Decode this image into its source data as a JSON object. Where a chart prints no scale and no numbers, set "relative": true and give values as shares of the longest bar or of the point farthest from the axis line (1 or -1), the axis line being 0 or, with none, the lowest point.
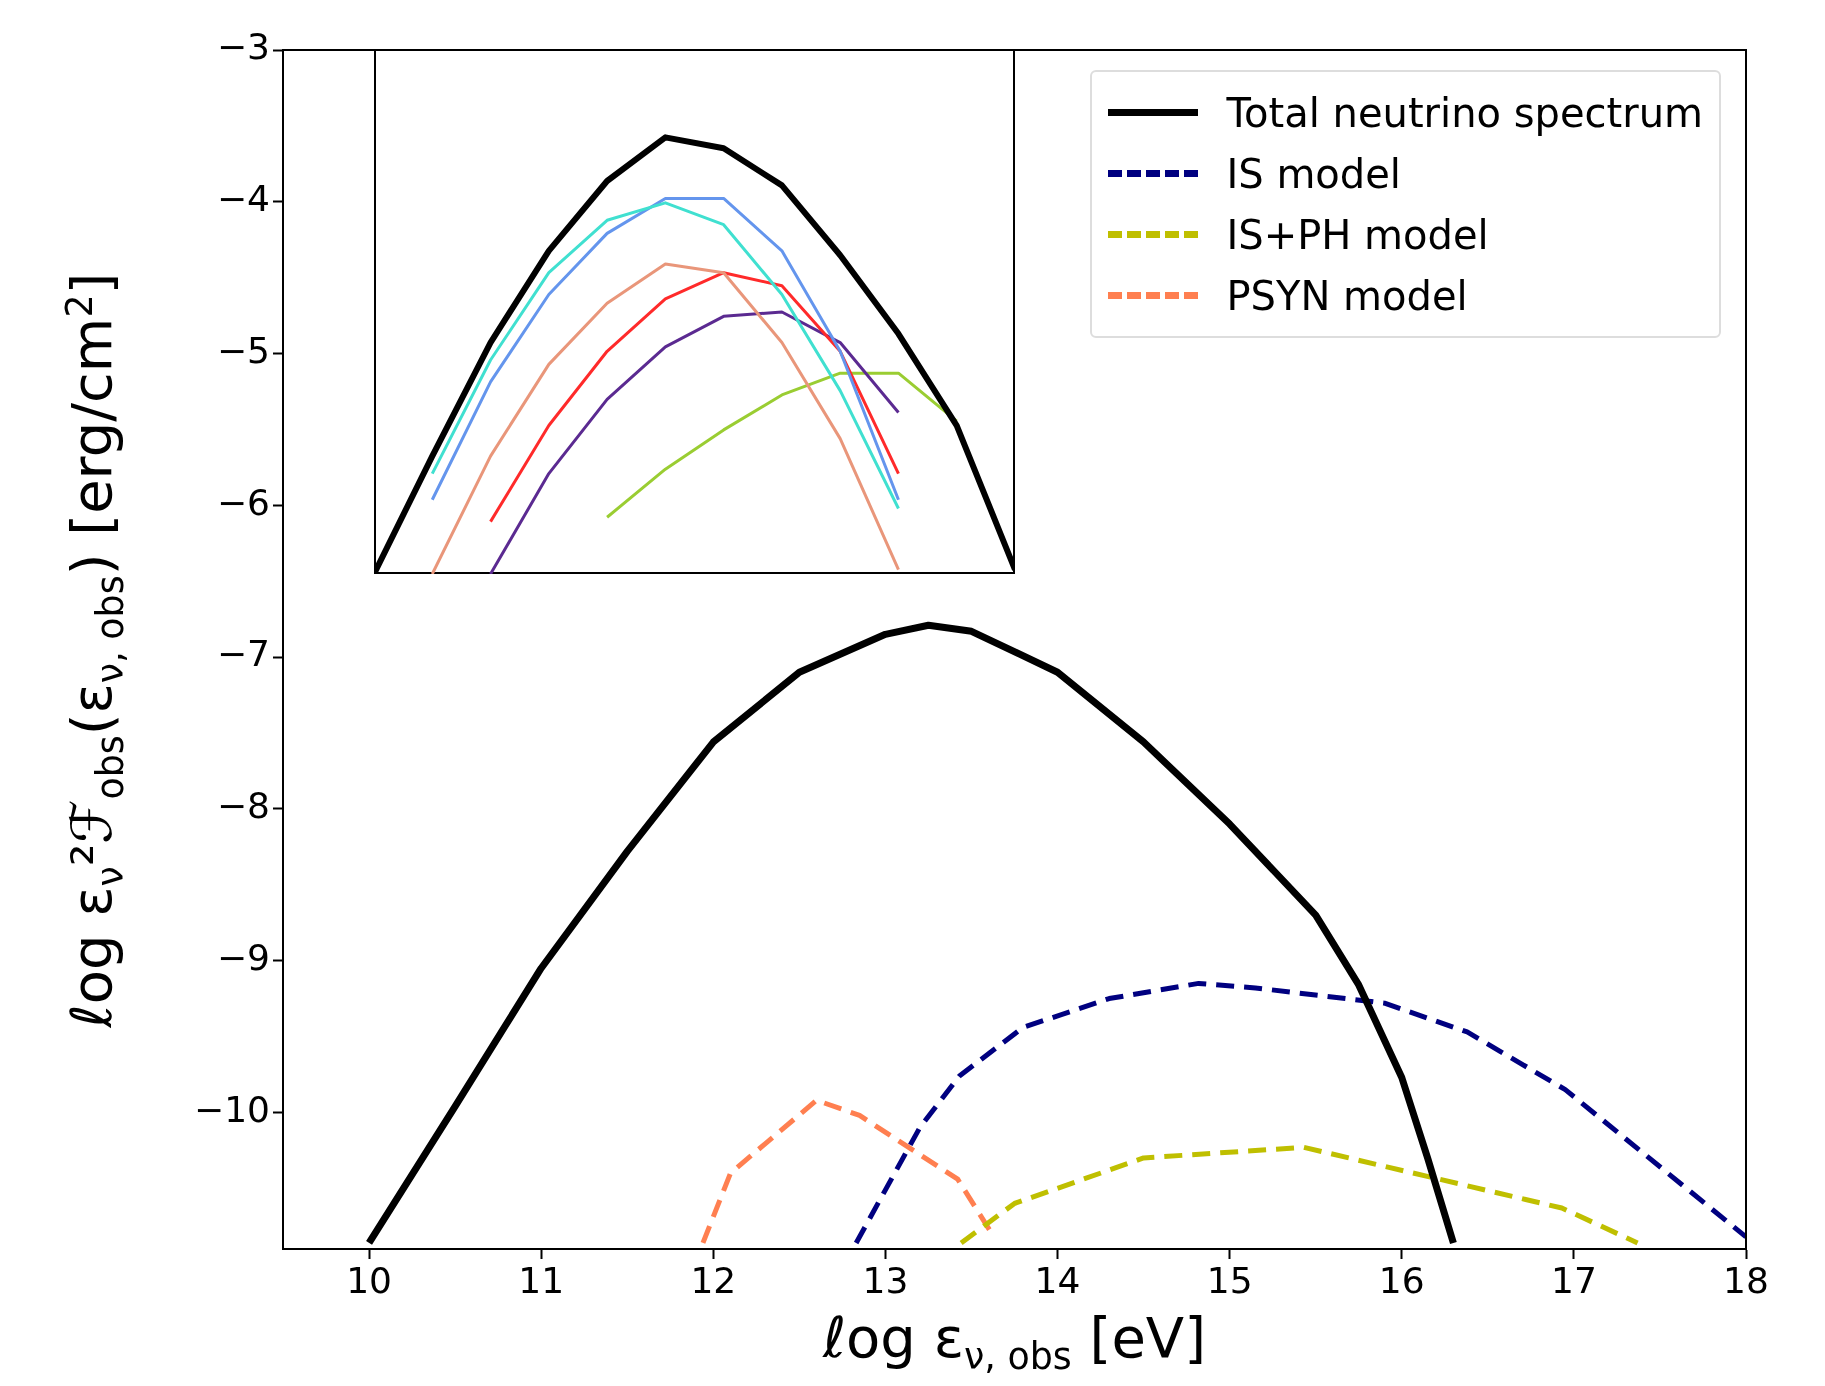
{
  "chart_data": [
    {
      "type": "line",
      "xlabel": "ℓog ε$_{ν, obs}$ [eV]",
      "ylabel": "ℓog ε$_{ν}$²ℱ$_{obs}$(ε$_{ν, obs}$) [erg/cm$^{2}$]",
      "xlim": [
        9.5,
        18
      ],
      "ylim": [
        -10.9,
        -3
      ],
      "xticks": [
        10,
        11,
        12,
        13,
        14,
        15,
        16,
        17,
        18
      ],
      "yticks": [
        -10,
        -9,
        -8,
        -7,
        -6,
        -5,
        -4,
        -3
      ],
      "grid": false,
      "legend": "top right",
      "marker": "none",
      "series": [
        {
          "name": "Total neutrino spectrum",
          "color": "#000000",
          "line_style": "solid",
          "x": [
            10.0,
            10.5,
            11,
            11.5,
            12,
            12.5,
            13,
            13.25,
            13.5,
            14,
            14.5,
            15,
            15.5,
            15.75,
            16,
            16.15,
            16.3
          ],
          "values": [
            -10.86,
            -9.96,
            -9.05,
            -8.28,
            -7.56,
            -7.1,
            -6.85,
            -6.79,
            -6.83,
            -7.1,
            -7.56,
            -8.1,
            -8.7,
            -9.16,
            -9.77,
            -10.3,
            -10.86
          ]
        },
        {
          "name": "IS model",
          "color": "#000080",
          "line_style": "dashed",
          "x": [
            12.83,
            13.2,
            13.43,
            13.8,
            14.3,
            14.82,
            15.15,
            15.9,
            16.38,
            16.95,
            18
          ],
          "values": [
            -10.86,
            -10.1,
            -9.76,
            -9.44,
            -9.25,
            -9.15,
            -9.18,
            -9.28,
            -9.47,
            -9.85,
            -10.82
          ]
        },
        {
          "name": "IS+PH model",
          "color": "#bfbf00",
          "line_style": "dashed",
          "x": [
            13.44,
            13.75,
            14.5,
            15.43,
            16.93,
            17.37
          ],
          "values": [
            -10.86,
            -10.6,
            -10.3,
            -10.23,
            -10.63,
            -10.86
          ]
        },
        {
          "name": "PSYN model",
          "color": "#ff7f50",
          "line_style": "dashed",
          "x": [
            11.94,
            12.1,
            12.6,
            12.85,
            13.42,
            13.63
          ],
          "values": [
            -10.86,
            -10.4,
            -9.92,
            -10.02,
            -10.44,
            -10.82
          ]
        }
      ]
    },
    {
      "type": "line",
      "relative": true,
      "tick_labels": false,
      "grid": false,
      "legend": false,
      "marker": "none",
      "categories": [
        null,
        null,
        null,
        null,
        null,
        null,
        null,
        null,
        null,
        null,
        null,
        null
      ],
      "series": [
        {
          "color": "#000000",
          "values": [
            0,
            0.27,
            0.53,
            0.74,
            0.9,
            1,
            0.975,
            0.89,
            0.73,
            0.55,
            0.34,
            0.01
          ]
        },
        {
          "color": "#40e0d0",
          "values": [
            null,
            0.23,
            0.49,
            0.69,
            0.81,
            0.85,
            0.8,
            0.64,
            0.42,
            0.15,
            null,
            null
          ]
        },
        {
          "color": "#6495ed",
          "values": [
            null,
            0.17,
            0.44,
            0.64,
            0.78,
            0.86,
            0.86,
            0.74,
            0.51,
            0.17,
            null,
            null
          ]
        },
        {
          "color": "#e9967a",
          "values": [
            null,
            0,
            0.27,
            0.48,
            0.62,
            0.71,
            0.69,
            0.53,
            0.31,
            0.01,
            null,
            null
          ]
        },
        {
          "color": "#ff2a2a",
          "values": [
            null,
            null,
            0.12,
            0.34,
            0.51,
            0.63,
            0.69,
            0.66,
            0.51,
            0.23,
            null,
            null
          ]
        },
        {
          "color": "#5b2a91",
          "values": [
            null,
            null,
            0,
            0.23,
            0.4,
            0.52,
            0.59,
            0.6,
            0.53,
            0.37,
            null,
            null
          ]
        },
        {
          "color": "#9acd32",
          "values": [
            null,
            null,
            null,
            null,
            0.13,
            0.24,
            0.33,
            0.41,
            0.46,
            0.46,
            0.35,
            null
          ]
        }
      ]
    }
  ]
}
